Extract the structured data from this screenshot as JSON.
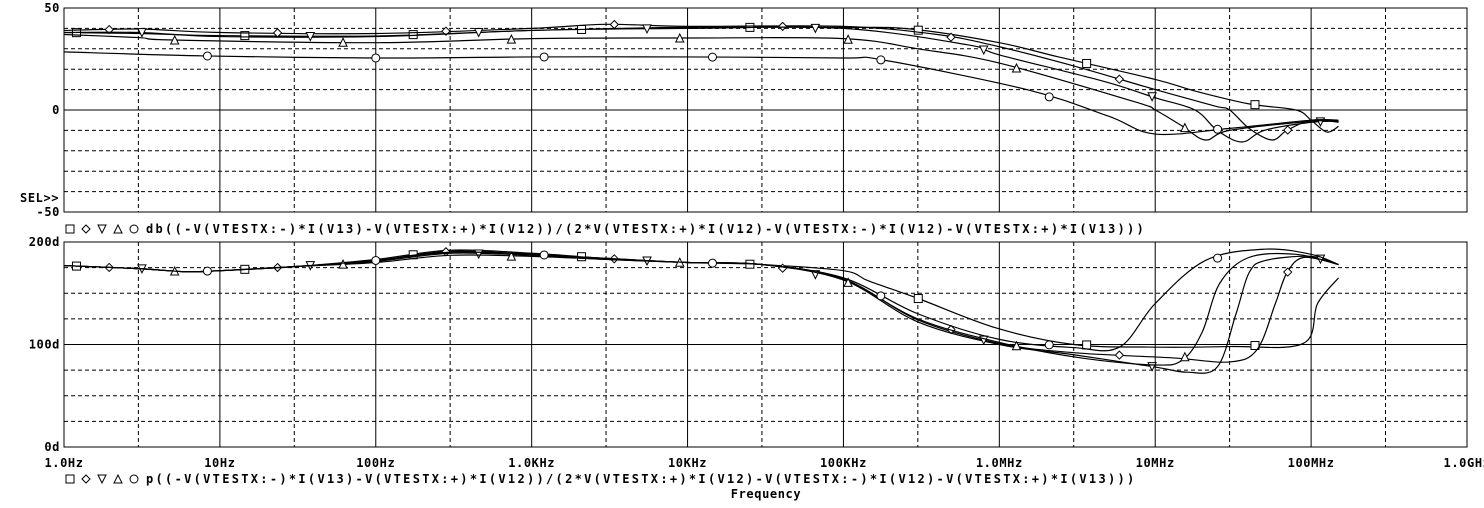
{
  "colors": {
    "background": "#ffffff",
    "trace": "#000000",
    "grid": "#000000"
  },
  "x_axis": {
    "label": "Frequency",
    "scale": "log",
    "range": [
      1,
      1000000000
    ],
    "tick_labels": [
      "1.0Hz",
      "10Hz",
      "100Hz",
      "1.0KHz",
      "10KHz",
      "100KHz",
      "1.0MHz",
      "10MHz",
      "100MHz",
      "1.0GHz"
    ]
  },
  "sel_marker": "SEL>>",
  "chart_data": [
    {
      "type": "line",
      "title": "",
      "ylabel": "",
      "xlabel": "Frequency",
      "xscale": "log",
      "ylim": [
        -50,
        50
      ],
      "ytick_step": 10,
      "ytick_labels": [
        {
          "value": -50,
          "text": "-50"
        },
        {
          "value": 0,
          "text": "0"
        },
        {
          "value": 50,
          "text": "50"
        }
      ],
      "grid": true,
      "legend": {
        "position": "bottom",
        "markers": [
          "square",
          "diamond",
          "triangle-down",
          "triangle-up",
          "circle"
        ],
        "expression": "db((-V(VTESTX:-)*I(V13)-V(VTESTX:+)*I(V12))/(2*V(VTESTX:+)*I(V12)-V(VTESTX:-)*I(V12)-V(VTESTX:+)*I(V13)))"
      },
      "series": [
        {
          "marker": "square",
          "points": [
            [
              1,
              38
            ],
            [
              3,
              37.5
            ],
            [
              10,
              36.5
            ],
            [
              100,
              36.3
            ],
            [
              1000,
              39
            ],
            [
              10000,
              40.5
            ],
            [
              100000,
              40.5
            ],
            [
              270000,
              39.7
            ],
            [
              1000000,
              33
            ],
            [
              2400000,
              26
            ],
            [
              10000000,
              15
            ],
            [
              18000000,
              9.3
            ],
            [
              40000000,
              3
            ],
            [
              80000000,
              0
            ],
            [
              100000000,
              -5
            ],
            [
              126000000,
              -10.8
            ],
            [
              150000000,
              -8
            ]
          ]
        },
        {
          "marker": "diamond",
          "points": [
            [
              1,
              39
            ],
            [
              3,
              39.7
            ],
            [
              10,
              38
            ],
            [
              100,
              37.5
            ],
            [
              1000,
              40
            ],
            [
              3000,
              42
            ],
            [
              10000,
              41
            ],
            [
              100000,
              41
            ],
            [
              400000,
              37
            ],
            [
              1000000,
              31
            ],
            [
              3200000,
              21
            ],
            [
              10000000,
              10
            ],
            [
              24000000,
              2
            ],
            [
              30000000,
              0
            ],
            [
              40000000,
              -9
            ],
            [
              56000000,
              -14.7
            ],
            [
              70000000,
              -10
            ],
            [
              100000000,
              -5
            ],
            [
              150000000,
              -6
            ]
          ]
        },
        {
          "marker": "triangle-down",
          "points": [
            [
              1,
              38
            ],
            [
              3,
              38
            ],
            [
              10,
              36
            ],
            [
              100,
              36
            ],
            [
              1000,
              39
            ],
            [
              10000,
              40
            ],
            [
              100000,
              40
            ],
            [
              620000,
              32
            ],
            [
              1000000,
              27
            ],
            [
              4700000,
              14
            ],
            [
              10000000,
              6
            ],
            [
              18000000,
              0
            ],
            [
              25000000,
              -10
            ],
            [
              36000000,
              -15.7
            ],
            [
              50000000,
              -10
            ],
            [
              100000000,
              -6
            ],
            [
              150000000,
              -5.5
            ]
          ]
        },
        {
          "marker": "triangle-up",
          "points": [
            [
              1,
              37
            ],
            [
              3,
              35.5
            ],
            [
              5,
              34.3
            ],
            [
              100,
              33
            ],
            [
              1000,
              35
            ],
            [
              10000,
              35.3
            ],
            [
              100000,
              35
            ],
            [
              300000,
              30
            ],
            [
              1000000,
              23
            ],
            [
              7400000,
              4
            ],
            [
              10000000,
              0
            ],
            [
              15000000,
              -8
            ],
            [
              21000000,
              -14.7
            ],
            [
              30000000,
              -10
            ],
            [
              100000000,
              -5.5
            ],
            [
              150000000,
              -5.5
            ]
          ]
        },
        {
          "marker": "circle",
          "points": [
            [
              1,
              28.5
            ],
            [
              8,
              26.5
            ],
            [
              100,
              25.5
            ],
            [
              1000,
              26
            ],
            [
              10000,
              26
            ],
            [
              100000,
              25.5
            ],
            [
              180000,
              24.5
            ],
            [
              1500000,
              10
            ],
            [
              5000000,
              -3
            ],
            [
              10000000,
              -11.8
            ],
            [
              30000000,
              -9
            ],
            [
              100000000,
              -5
            ],
            [
              150000000,
              -5
            ]
          ]
        }
      ]
    },
    {
      "type": "line",
      "title": "",
      "ylabel": "",
      "xlabel": "Frequency",
      "xscale": "log",
      "ylim": [
        0,
        200
      ],
      "ytick_step": 25,
      "ytick_labels": [
        {
          "value": 0,
          "text": "0d"
        },
        {
          "value": 100,
          "text": "100d"
        },
        {
          "value": 200,
          "text": "200d"
        }
      ],
      "grid": true,
      "legend": {
        "position": "bottom",
        "markers": [
          "square",
          "diamond",
          "triangle-down",
          "triangle-up",
          "circle"
        ],
        "expression": "p((-V(VTESTX:-)*I(V13)-V(VTESTX:+)*I(V12))/(2*V(VTESTX:+)*I(V12)-V(VTESTX:-)*I(V12)-V(VTESTX:+)*I(V13)))"
      },
      "series": [
        {
          "marker": "square",
          "points": [
            [
              1,
              177
            ],
            [
              3,
              174
            ],
            [
              6,
              171
            ],
            [
              10,
              172
            ],
            [
              30,
              176
            ],
            [
              100,
              183
            ],
            [
              300,
              192
            ],
            [
              1000,
              189
            ],
            [
              3000,
              184
            ],
            [
              10000,
              180
            ],
            [
              30000,
              178
            ],
            [
              100000,
              172
            ],
            [
              145000,
              162
            ],
            [
              300000,
              145
            ],
            [
              960000,
              116
            ],
            [
              3000000,
              100
            ],
            [
              9000000,
              97.5
            ],
            [
              30000000,
              98
            ],
            [
              89000000,
              101
            ],
            [
              110000000,
              140
            ],
            [
              150000000,
              165
            ]
          ]
        },
        {
          "marker": "diamond",
          "points": [
            [
              1,
              177
            ],
            [
              3,
              174
            ],
            [
              6,
              171
            ],
            [
              10,
              172
            ],
            [
              30,
              176
            ],
            [
              100,
              182
            ],
            [
              300,
              191
            ],
            [
              1000,
              188
            ],
            [
              3000,
              184
            ],
            [
              10000,
              180
            ],
            [
              30000,
              178
            ],
            [
              100000,
              164
            ],
            [
              300000,
              124
            ],
            [
              1000000,
              101
            ],
            [
              3000000,
              92
            ],
            [
              12700000,
              87
            ],
            [
              30000000,
              83
            ],
            [
              45000000,
              95
            ],
            [
              59000000,
              140
            ],
            [
              70000000,
              170
            ],
            [
              90000000,
              185
            ],
            [
              150000000,
              178
            ]
          ]
        },
        {
          "marker": "triangle-down",
          "points": [
            [
              1,
              177
            ],
            [
              3,
              174
            ],
            [
              6,
              171
            ],
            [
              10,
              172
            ],
            [
              30,
              176
            ],
            [
              100,
              181
            ],
            [
              300,
              189
            ],
            [
              1000,
              187
            ],
            [
              3000,
              183
            ],
            [
              10000,
              180
            ],
            [
              30000,
              178
            ],
            [
              100000,
              163
            ],
            [
              300000,
              122
            ],
            [
              1000000,
              100
            ],
            [
              3000000,
              90
            ],
            [
              10000000,
              78
            ],
            [
              16000000,
              73
            ],
            [
              25000000,
              78
            ],
            [
              33000000,
              130
            ],
            [
              40000000,
              170
            ],
            [
              51000000,
              182
            ],
            [
              100000000,
              186
            ],
            [
              150000000,
              178
            ]
          ]
        },
        {
          "marker": "triangle-up",
          "points": [
            [
              1,
              177
            ],
            [
              3,
              174
            ],
            [
              6,
              171
            ],
            [
              10,
              172
            ],
            [
              30,
              176
            ],
            [
              100,
              180
            ],
            [
              300,
              187
            ],
            [
              1000,
              186
            ],
            [
              3000,
              183
            ],
            [
              10000,
              180
            ],
            [
              30000,
              178
            ],
            [
              100000,
              163
            ],
            [
              300000,
              125
            ],
            [
              1000000,
              102
            ],
            [
              3300000,
              87
            ],
            [
              10000000,
              80
            ],
            [
              15000000,
              85
            ],
            [
              20000000,
              112
            ],
            [
              26000000,
              160
            ],
            [
              40000000,
              185
            ],
            [
              80000000,
              188
            ],
            [
              150000000,
              178
            ]
          ]
        },
        {
          "marker": "circle",
          "points": [
            [
              1,
              177
            ],
            [
              3,
              174
            ],
            [
              6,
              171
            ],
            [
              10,
              172
            ],
            [
              30,
              176
            ],
            [
              100,
              182
            ],
            [
              300,
              190
            ],
            [
              1000,
              188
            ],
            [
              3000,
              184
            ],
            [
              10000,
              180
            ],
            [
              30000,
              178
            ],
            [
              100000,
              165
            ],
            [
              300000,
              130
            ],
            [
              1000000,
              105
            ],
            [
              3000000,
              97
            ],
            [
              5900000,
              97.5
            ],
            [
              10000000,
              140
            ],
            [
              21000000,
              182
            ],
            [
              50000000,
              193
            ],
            [
              100000000,
              188
            ],
            [
              150000000,
              178
            ]
          ]
        }
      ]
    }
  ]
}
